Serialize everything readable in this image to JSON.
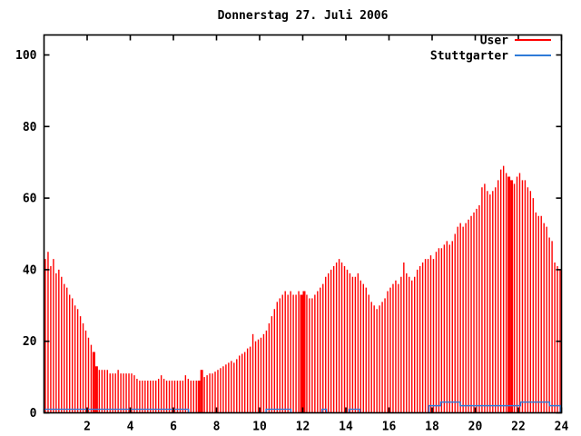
{
  "window": {
    "title": "Donnerstag 27. Juli 2006"
  },
  "colors": {
    "user_series": "#ff0000",
    "stuttgarter_series": "#2e7bd8",
    "axis": "#000000",
    "background": "#ffffff"
  },
  "legend": {
    "position": "top-right-inside",
    "entries": [
      {
        "label": "User",
        "color": "#ff0000"
      },
      {
        "label": "Stuttgarter",
        "color": "#2e7bd8"
      }
    ]
  },
  "chart_data": {
    "type": "bar",
    "title": "Donnerstag 27. Juli 2006",
    "xlabel": "",
    "ylabel": "",
    "x_unit": "hour of day",
    "xlim": [
      0,
      24
    ],
    "ylim": [
      0,
      105
    ],
    "grid": false,
    "x_ticks": [
      2,
      4,
      6,
      8,
      10,
      12,
      14,
      16,
      18,
      20,
      22,
      24
    ],
    "y_ticks": [
      0,
      20,
      40,
      60,
      80,
      100
    ],
    "sample_step_hours": 0.125,
    "series": [
      {
        "name": "User",
        "style": "impulses",
        "color": "#ff0000",
        "x_start": 0.0625,
        "values": [
          43,
          45,
          41,
          43,
          39,
          40,
          38,
          36,
          35,
          33,
          32,
          30,
          29,
          27,
          25,
          23,
          21,
          19,
          17,
          13,
          12,
          12,
          12,
          12,
          11,
          11,
          11,
          12,
          11,
          11,
          11,
          11,
          11,
          10.5,
          9.5,
          9,
          9,
          9,
          9,
          9,
          9,
          9,
          9.5,
          10.5,
          9.5,
          9,
          9,
          9,
          9,
          9,
          9,
          9,
          10.5,
          9.5,
          9,
          9,
          9,
          9,
          12,
          10,
          10.5,
          11,
          11,
          11.5,
          12,
          12.5,
          13,
          13.5,
          14,
          14.5,
          14,
          15,
          16,
          16.5,
          17,
          18,
          18.5,
          22,
          20,
          20.5,
          21,
          22,
          23,
          25,
          27,
          29,
          31,
          32,
          33,
          34,
          33,
          34,
          33,
          33,
          34,
          33,
          34,
          33,
          32,
          32,
          33,
          34,
          35,
          36,
          38,
          39,
          40,
          41,
          42,
          43,
          42,
          41,
          40,
          39,
          38,
          38,
          39,
          37,
          36,
          35,
          33,
          31,
          30,
          29,
          30,
          31,
          32,
          34,
          35,
          36,
          37,
          36,
          38,
          42,
          39,
          38,
          37,
          38,
          40,
          41,
          42,
          43,
          43,
          44,
          43,
          45,
          46,
          46,
          47,
          48,
          47,
          48,
          50,
          52,
          53,
          52,
          53,
          54,
          55,
          56,
          57,
          58,
          63,
          64,
          62,
          61,
          62,
          63,
          65,
          68,
          69,
          67,
          66,
          65,
          64,
          66,
          67,
          65,
          65,
          63,
          62,
          60,
          56,
          55,
          55,
          53,
          52,
          49,
          48,
          42,
          41,
          40
        ],
        "thick_marker_hours": [
          2.375,
          7.25,
          12.0,
          21.625
        ]
      },
      {
        "name": "Stuttgarter",
        "style": "steps",
        "color": "#2e7bd8",
        "segments": [
          {
            "from": 0.0,
            "to": 6.7,
            "value": 1
          },
          {
            "from": 10.3,
            "to": 11.45,
            "value": 1
          },
          {
            "from": 12.9,
            "to": 13.1,
            "value": 1
          },
          {
            "from": 14.15,
            "to": 14.65,
            "value": 1
          },
          {
            "from": 17.85,
            "to": 18.4,
            "value": 2
          },
          {
            "from": 18.4,
            "to": 19.3,
            "value": 3
          },
          {
            "from": 19.3,
            "to": 22.1,
            "value": 2
          },
          {
            "from": 22.1,
            "to": 23.45,
            "value": 3
          },
          {
            "from": 23.45,
            "to": 23.95,
            "value": 2
          }
        ]
      }
    ]
  }
}
